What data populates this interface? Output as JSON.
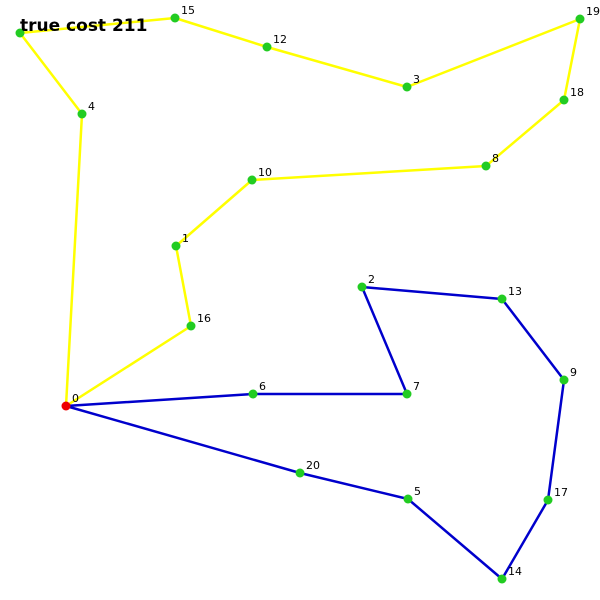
{
  "title": "true cost 211",
  "colors": {
    "route_1": "#ffff00",
    "route_2": "#0000cc",
    "node": "#22cc22",
    "depot": "#ee0000"
  },
  "nodes": [
    {
      "id": "0",
      "label": "0",
      "role": "depot"
    },
    {
      "id": "1",
      "label": "1"
    },
    {
      "id": "2",
      "label": "2"
    },
    {
      "id": "3",
      "label": "3"
    },
    {
      "id": "4",
      "label": "4"
    },
    {
      "id": "5",
      "label": "5"
    },
    {
      "id": "6",
      "label": "6"
    },
    {
      "id": "7",
      "label": "7"
    },
    {
      "id": "8",
      "label": "8"
    },
    {
      "id": "9",
      "label": "9"
    },
    {
      "id": "10",
      "label": "10"
    },
    {
      "id": "11",
      "label": ""
    },
    {
      "id": "12",
      "label": "12"
    },
    {
      "id": "13",
      "label": "13"
    },
    {
      "id": "14",
      "label": "14"
    },
    {
      "id": "15",
      "label": "15"
    },
    {
      "id": "16",
      "label": "16"
    },
    {
      "id": "17",
      "label": "17"
    },
    {
      "id": "18",
      "label": "18"
    },
    {
      "id": "19",
      "label": "19"
    },
    {
      "id": "20",
      "label": "20"
    }
  ],
  "routes": [
    {
      "color_key": "route_1",
      "path": [
        "0",
        "4",
        "11",
        "15",
        "12",
        "3",
        "19",
        "18",
        "8",
        "10",
        "1",
        "16",
        "0"
      ]
    },
    {
      "color_key": "route_2",
      "path": [
        "0",
        "6",
        "7",
        "2",
        "13",
        "9",
        "17",
        "14",
        "5",
        "20",
        "0"
      ]
    }
  ]
}
